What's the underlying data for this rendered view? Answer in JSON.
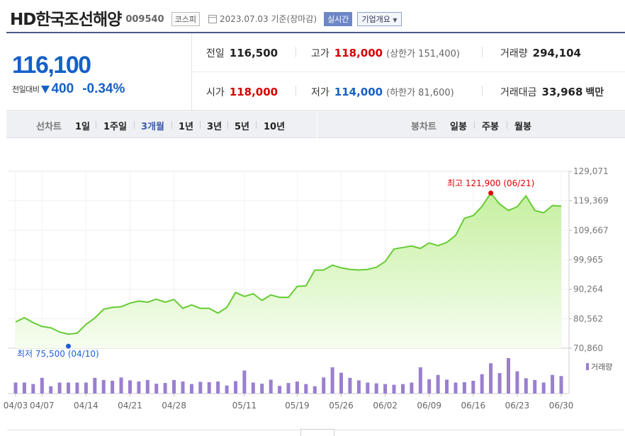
{
  "header": {
    "name": "HD한국조선해양",
    "code": "009540",
    "market": "코스피",
    "date": "2023.07.03 기준(장마감)",
    "realtime": "실시간",
    "company_info": "기업개요"
  },
  "summary": {
    "price": "116,100",
    "diff_label": "전일대비",
    "diff_value": "400",
    "diff_pct": "-0.34%",
    "prev_close_label": "전일",
    "prev_close": "116,500",
    "high_label": "고가",
    "high": "118,000",
    "upper_limit": "(상한가 151,400)",
    "volume_label": "거래량",
    "volume": "294,104",
    "open_label": "시가",
    "open": "118,000",
    "low_label": "저가",
    "low": "114,000",
    "lower_limit": "(하한가 81,600)",
    "amount_label": "거래대금",
    "amount": "33,968",
    "amount_unit": "백만"
  },
  "periods": {
    "line_label": "선차트",
    "line_items": [
      "1일",
      "1주일",
      "3개월",
      "1년",
      "3년",
      "5년",
      "10년"
    ],
    "selected": "3개월",
    "candle_label": "봉차트",
    "candle_items": [
      "일봉",
      "주봉",
      "월봉"
    ]
  },
  "chart_data": {
    "type": "area",
    "x_tick_labels": [
      "04/03",
      "04/07",
      "04/14",
      "04/21",
      "04/28",
      "05/11",
      "05/19",
      "05/26",
      "06/02",
      "06/09",
      "06/16",
      "06/23",
      "06/30"
    ],
    "y_tick_labels": [
      "129,071",
      "119,369",
      "109,667",
      "99,965",
      "90,264",
      "80,562",
      "70,860"
    ],
    "ylim": [
      70860,
      129071
    ],
    "values": [
      79500,
      80900,
      79300,
      78000,
      77600,
      76200,
      75500,
      75800,
      78700,
      80800,
      83700,
      84300,
      84500,
      85700,
      86400,
      86000,
      87000,
      86000,
      86900,
      84000,
      85100,
      84000,
      84000,
      82400,
      84300,
      89200,
      87900,
      88800,
      86600,
      88400,
      87600,
      87600,
      91200,
      91400,
      96600,
      96600,
      98200,
      97300,
      96800,
      96600,
      96800,
      97500,
      99400,
      103500,
      104000,
      104500,
      103700,
      105500,
      104600,
      105700,
      108000,
      113600,
      114500,
      117500,
      121900,
      118300,
      116200,
      117400,
      121000,
      116200,
      115400,
      117800,
      117600
    ],
    "volumes": [
      30,
      30,
      26,
      43,
      20,
      30,
      30,
      30,
      30,
      43,
      37,
      35,
      44,
      36,
      33,
      37,
      27,
      29,
      37,
      33,
      26,
      32,
      31,
      33,
      22,
      34,
      63,
      30,
      27,
      38,
      21,
      29,
      33,
      26,
      20,
      44,
      72,
      57,
      43,
      36,
      30,
      28,
      26,
      24,
      26,
      30,
      72,
      39,
      51,
      38,
      30,
      31,
      35,
      53,
      83,
      56,
      97,
      61,
      42,
      37,
      30,
      51,
      48
    ],
    "high_label": "최고 121,900 (06/21)",
    "low_label": "최저 75,500 (04/10)",
    "volume_legend": "거래량",
    "colors": {
      "line": "#66cc33",
      "fill_top": "#c6f0a0",
      "fill_bottom": "#f6fdf0",
      "bar": "#9a7fd0",
      "high": "#e00000",
      "low": "#1f5fd6"
    }
  }
}
